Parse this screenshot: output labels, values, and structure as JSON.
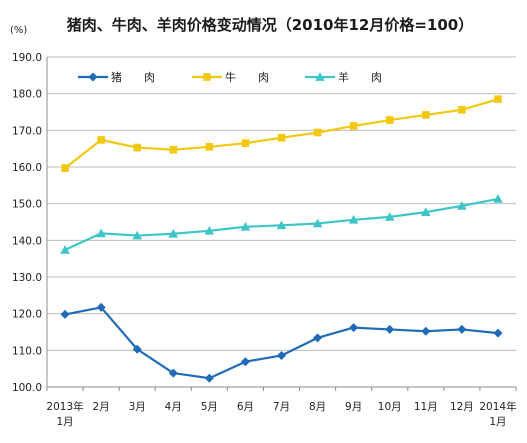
{
  "chart_data": {
    "type": "line",
    "title": "猪肉、牛肉、羊肉价格变动情况（2010年12月价格=100）",
    "ylabel": "(%)",
    "xlabel": "",
    "x_tick_labels": [
      [
        "2013年",
        "1月"
      ],
      [
        "2月"
      ],
      [
        "3月"
      ],
      [
        "4月"
      ],
      [
        "5月"
      ],
      [
        "6月"
      ],
      [
        "7月"
      ],
      [
        "8月"
      ],
      [
        "9月"
      ],
      [
        "10月"
      ],
      [
        "11月"
      ],
      [
        "12月"
      ],
      [
        "2014年",
        "1月"
      ]
    ],
    "y_ticks": [
      "100.0",
      "110.0",
      "120.0",
      "130.0",
      "140.0",
      "150.0",
      "160.0",
      "170.0",
      "180.0",
      "190.0"
    ],
    "ylim": [
      100,
      190
    ],
    "grid": true,
    "legend_position": "top-left",
    "series": [
      {
        "name": "猪　　肉",
        "color": "#1f6bb8",
        "marker": "diamond",
        "values": [
          119.8,
          121.7,
          110.3,
          103.8,
          102.4,
          106.9,
          108.6,
          113.4,
          116.2,
          115.7,
          115.2,
          115.7,
          114.7
        ]
      },
      {
        "name": "牛　　肉",
        "color": "#f2c80f",
        "marker": "square",
        "values": [
          159.7,
          167.4,
          165.3,
          164.7,
          165.5,
          166.5,
          168.0,
          169.4,
          171.2,
          172.8,
          174.2,
          175.6,
          178.5
        ]
      },
      {
        "name": "羊　　肉",
        "color": "#3ec5c8",
        "marker": "triangle",
        "values": [
          137.4,
          141.9,
          141.3,
          141.8,
          142.6,
          143.7,
          144.1,
          144.6,
          145.6,
          146.4,
          147.7,
          149.4,
          151.3
        ]
      }
    ]
  }
}
